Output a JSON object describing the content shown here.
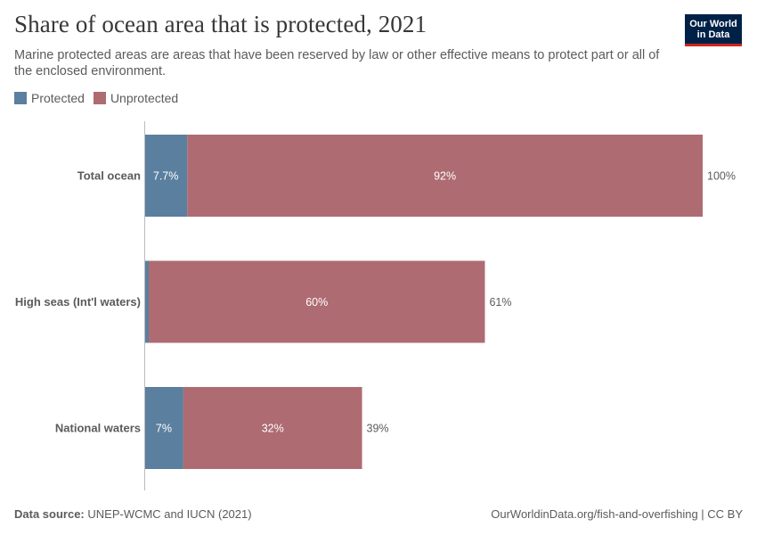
{
  "header": {
    "title": "Share of ocean area that is protected, 2021",
    "subtitle": "Marine protected areas are areas that have been reserved by law or other effective means to protect part or all of the enclosed environment."
  },
  "logo": {
    "line1": "Our World",
    "line2": "in Data",
    "bg_color": "#002147",
    "accent_color": "#ce261e"
  },
  "legend": {
    "items": [
      {
        "label": "Protected",
        "color": "#5b7f9f"
      },
      {
        "label": "Unprotected",
        "color": "#ae6b72"
      }
    ]
  },
  "chart_data": {
    "type": "bar",
    "orientation": "horizontal",
    "stacked": true,
    "categories": [
      "Total ocean",
      "High seas (Int'l waters)",
      "National waters"
    ],
    "series": [
      {
        "name": "Protected",
        "values": [
          7.7,
          0.8,
          7
        ],
        "labels": [
          "7.7%",
          "",
          "7%"
        ],
        "color": "#5b7f9f"
      },
      {
        "name": "Unprotected",
        "values": [
          92.3,
          60.2,
          32
        ],
        "labels": [
          "92%",
          "60%",
          "32%"
        ],
        "color": "#ae6b72"
      }
    ],
    "totals": [
      "100%",
      "61%",
      "39%"
    ],
    "xlim": [
      0,
      100
    ]
  },
  "footer": {
    "source_label": "Data source:",
    "source_text": "UNEP-WCMC and IUCN (2021)",
    "url_text": "OurWorldinData.org/fish-and-overfishing | CC BY"
  }
}
